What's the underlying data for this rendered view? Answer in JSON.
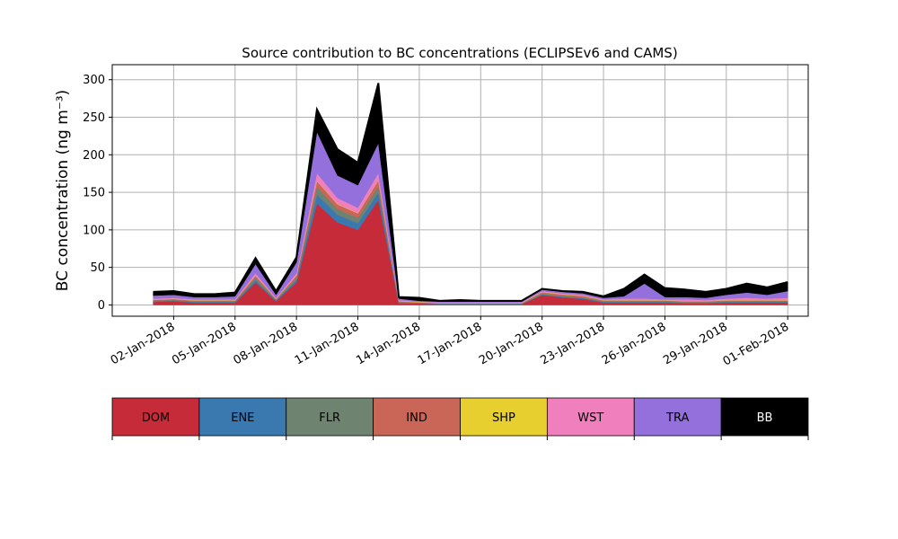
{
  "chart_data": {
    "type": "area",
    "stacked": true,
    "title": "Source contribution to BC concentrations (ECLIPSEv6 and CAMS)",
    "ylabel": "BC concentration (ng m⁻³)",
    "xlabel": "",
    "ylim": [
      -15,
      320
    ],
    "xlim": [
      "2017-12-30",
      "2018-02-02"
    ],
    "yticks": [
      0,
      50,
      100,
      150,
      200,
      250,
      300
    ],
    "xticks": [
      "02-Jan-2018",
      "05-Jan-2018",
      "08-Jan-2018",
      "11-Jan-2018",
      "14-Jan-2018",
      "17-Jan-2018",
      "20-Jan-2018",
      "23-Jan-2018",
      "26-Jan-2018",
      "29-Jan-2018",
      "01-Feb-2018"
    ],
    "grid": true,
    "legend_position": "bottom",
    "x": [
      "2018-01-01",
      "2018-01-02",
      "2018-01-03",
      "2018-01-04",
      "2018-01-05",
      "2018-01-06",
      "2018-01-07",
      "2018-01-08",
      "2018-01-09",
      "2018-01-10",
      "2018-01-11",
      "2018-01-12",
      "2018-01-13",
      "2018-01-14",
      "2018-01-15",
      "2018-01-16",
      "2018-01-17",
      "2018-01-18",
      "2018-01-19",
      "2018-01-20",
      "2018-01-21",
      "2018-01-22",
      "2018-01-23",
      "2018-01-24",
      "2018-01-25",
      "2018-01-26",
      "2018-01-27",
      "2018-01-28",
      "2018-01-29",
      "2018-01-30",
      "2018-01-31",
      "2018-02-01"
    ],
    "series": [
      {
        "name": "DOM",
        "color": "#c62b39",
        "values": [
          4,
          5,
          3,
          3,
          3,
          30,
          5,
          30,
          135,
          110,
          100,
          140,
          2,
          2,
          1,
          1,
          1,
          1,
          1,
          13,
          10,
          8,
          3,
          3,
          3,
          3,
          2,
          2,
          3,
          3,
          3,
          3
        ]
      },
      {
        "name": "ENE",
        "color": "#3a78b0",
        "values": [
          1,
          1,
          1,
          1,
          1,
          3,
          1,
          3,
          12,
          10,
          9,
          10,
          1,
          0.5,
          0.5,
          0.5,
          0.5,
          0.5,
          0.5,
          1,
          1,
          1,
          1,
          1,
          1,
          1,
          1,
          1,
          1,
          1,
          1,
          1
        ]
      },
      {
        "name": "FLR",
        "color": "#6e8470",
        "values": [
          1,
          1,
          1,
          1,
          1,
          3,
          1,
          3,
          10,
          8,
          7,
          8,
          1,
          0.5,
          0.5,
          0.5,
          0.5,
          0.5,
          0.5,
          1,
          1,
          1,
          1,
          1,
          1,
          1,
          1,
          1,
          1,
          1,
          1,
          1
        ]
      },
      {
        "name": "IND",
        "color": "#c96657",
        "values": [
          1,
          1,
          1,
          1,
          1,
          3,
          1,
          3,
          8,
          6,
          6,
          8,
          1,
          0.5,
          0.5,
          0.5,
          0.5,
          0.5,
          0.5,
          2,
          2,
          2,
          1,
          1,
          1,
          1,
          1,
          1,
          1,
          1,
          1,
          1
        ]
      },
      {
        "name": "SHP",
        "color": "#e6cf2e",
        "values": [
          0.5,
          0.5,
          0.5,
          0.5,
          0.5,
          0.5,
          0.5,
          0.5,
          0.5,
          0.5,
          0.5,
          0.5,
          0.5,
          0.5,
          0.5,
          0.5,
          0.5,
          0.5,
          0.5,
          0.5,
          0.5,
          0.5,
          0.5,
          0.5,
          0.5,
          0.5,
          0.5,
          0.5,
          0.5,
          0.5,
          0.5,
          0.5
        ]
      },
      {
        "name": "WST",
        "color": "#f07fbd",
        "values": [
          1,
          1,
          1,
          1,
          1,
          3,
          1,
          3,
          10,
          8,
          7,
          9,
          1,
          0.5,
          0.5,
          0.5,
          0.5,
          0.5,
          0.5,
          1,
          1,
          1,
          1,
          2,
          2,
          1,
          2,
          1,
          2,
          3,
          2,
          3
        ]
      },
      {
        "name": "TRA",
        "color": "#9370db",
        "values": [
          4,
          4,
          3,
          3,
          4,
          12,
          4,
          14,
          55,
          30,
          30,
          40,
          2,
          1,
          1,
          1,
          1,
          1,
          1,
          2,
          2,
          2,
          2,
          3,
          20,
          3,
          3,
          3,
          5,
          7,
          5,
          9
        ]
      },
      {
        "name": "BB",
        "color": "#000000",
        "values": [
          5,
          5,
          4,
          4,
          5,
          8,
          5,
          7,
          30,
          35,
          30,
          80,
          2,
          4,
          1,
          2,
          1,
          1,
          1,
          1,
          1,
          2,
          2,
          10,
          12,
          12,
          10,
          8,
          8,
          12,
          10,
          12
        ]
      }
    ]
  }
}
